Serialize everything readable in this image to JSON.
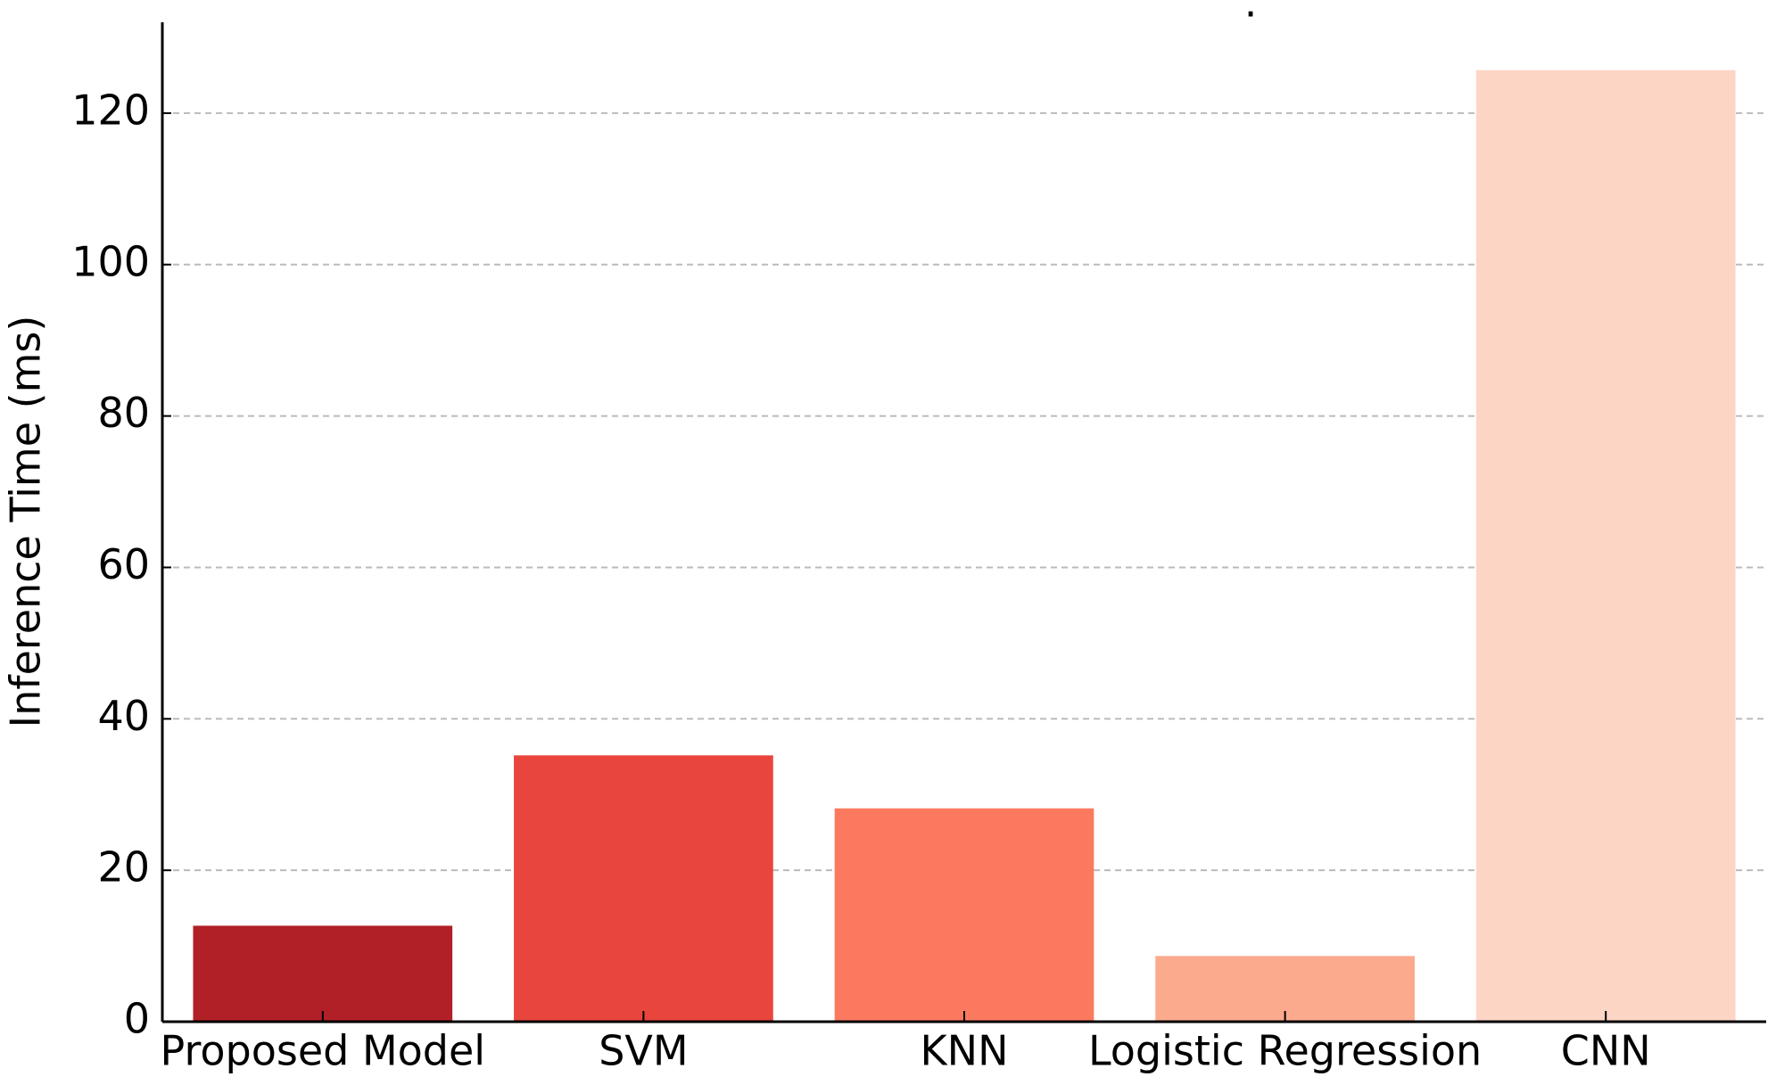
{
  "chart_data": {
    "type": "bar",
    "title": ".",
    "ylabel": "Inference Time (ms)",
    "categories": [
      "Proposed Model",
      "SVM",
      "KNN",
      "Logistic Regression",
      "CNN"
    ],
    "values": [
      12.5,
      35,
      28,
      8.5,
      125.5
    ],
    "colors": [
      "#b22027",
      "#e8453c",
      "#fb7a5f",
      "#fcaa8e",
      "#fdd5c5"
    ],
    "ylim": [
      0,
      132
    ],
    "yticks": [
      0,
      20,
      40,
      60,
      80,
      100,
      120
    ],
    "grid": true
  }
}
